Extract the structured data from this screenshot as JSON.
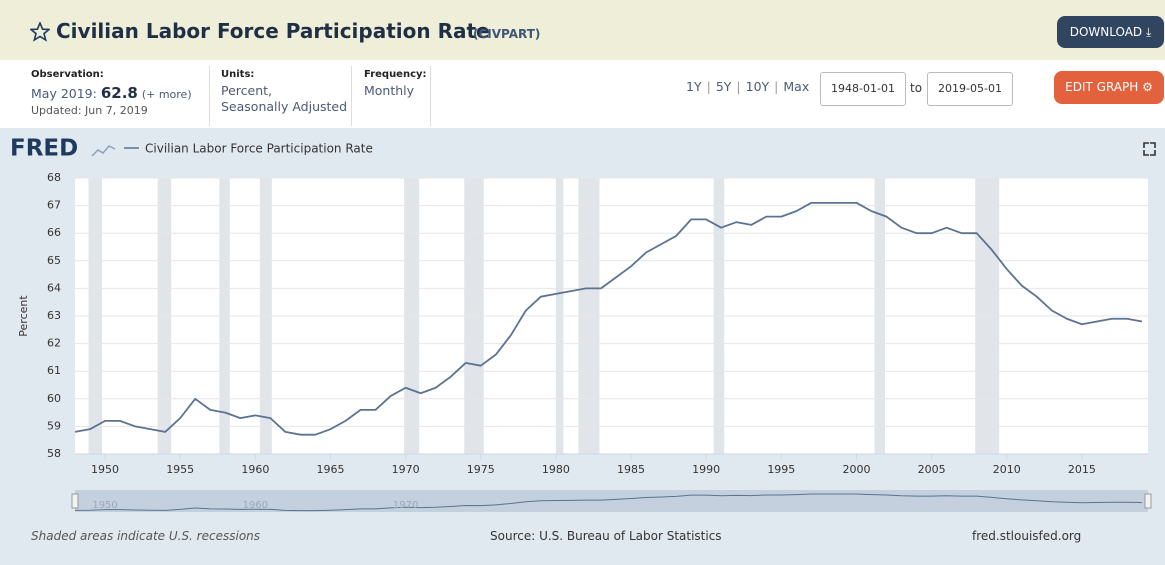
{
  "header": {
    "title": "Civilian Labor Force Participation Rate",
    "code": "(CIVPART)",
    "download": "DOWNLOAD"
  },
  "observation": {
    "label": "Observation:",
    "date": "May 2019:",
    "value": "62.8",
    "more": "(+ more)",
    "updated": "Updated: Jun 7, 2019"
  },
  "units": {
    "label": "Units:",
    "lines": [
      "Percent,",
      "Seasonally Adjusted"
    ]
  },
  "frequency": {
    "label": "Frequency:",
    "value": "Monthly"
  },
  "range": {
    "buttons": [
      "1Y",
      "5Y",
      "10Y",
      "Max"
    ],
    "start": "1948-01-01",
    "to": "to",
    "end": "2019-05-01",
    "edit": "EDIT GRAPH"
  },
  "footer": {
    "note": "Shaded areas indicate U.S. recessions",
    "source": "Source: U.S. Bureau of Labor Statistics",
    "site": "fred.stlouisfed.org"
  },
  "chart_data": {
    "type": "line",
    "brand": "FRED",
    "ylabel": "Percent",
    "x": [
      1948,
      1949,
      1950,
      1951,
      1952,
      1953,
      1954,
      1955,
      1956,
      1957,
      1958,
      1959,
      1960,
      1961,
      1962,
      1963,
      1964,
      1965,
      1966,
      1967,
      1968,
      1969,
      1970,
      1971,
      1972,
      1973,
      1974,
      1975,
      1976,
      1977,
      1978,
      1979,
      1980,
      1981,
      1982,
      1983,
      1984,
      1985,
      1986,
      1987,
      1988,
      1989,
      1990,
      1991,
      1992,
      1993,
      1994,
      1995,
      1996,
      1997,
      1998,
      1999,
      2000,
      2001,
      2002,
      2003,
      2004,
      2005,
      2006,
      2007,
      2008,
      2009,
      2010,
      2011,
      2012,
      2013,
      2014,
      2015,
      2016,
      2017,
      2018,
      2019
    ],
    "series": [
      {
        "name": "Civilian Labor Force Participation Rate",
        "color": "#5b7393",
        "values": [
          58.8,
          58.9,
          59.2,
          59.2,
          59.0,
          58.9,
          58.8,
          59.3,
          60.0,
          59.6,
          59.5,
          59.3,
          59.4,
          59.3,
          58.8,
          58.7,
          58.7,
          58.9,
          59.2,
          59.6,
          59.6,
          60.1,
          60.4,
          60.2,
          60.4,
          60.8,
          61.3,
          61.2,
          61.6,
          62.3,
          63.2,
          63.7,
          63.8,
          63.9,
          64.0,
          64.0,
          64.4,
          64.8,
          65.3,
          65.6,
          65.9,
          66.5,
          66.5,
          66.2,
          66.4,
          66.3,
          66.6,
          66.6,
          66.8,
          67.1,
          67.1,
          67.1,
          67.1,
          66.8,
          66.6,
          66.2,
          66.0,
          66.0,
          66.2,
          66.0,
          66.0,
          65.4,
          64.7,
          64.1,
          63.7,
          63.2,
          62.9,
          62.7,
          62.8,
          62.9,
          62.9,
          62.8
        ]
      }
    ],
    "recessions": [
      [
        1948.9,
        1949.8
      ],
      [
        1953.5,
        1954.4
      ],
      [
        1957.6,
        1958.3
      ],
      [
        1960.3,
        1961.1
      ],
      [
        1969.9,
        1970.9
      ],
      [
        1973.9,
        1975.2
      ],
      [
        1980.0,
        1980.5
      ],
      [
        1981.5,
        1982.9
      ],
      [
        1990.5,
        1991.2
      ],
      [
        2001.2,
        2001.9
      ],
      [
        2007.9,
        2009.5
      ]
    ],
    "recession_color": "#e1e5ea",
    "xlim": [
      1948,
      2019.4
    ],
    "xticks": [
      1950,
      1955,
      1960,
      1965,
      1970,
      1975,
      1980,
      1985,
      1990,
      1995,
      2000,
      2005,
      2010,
      2015
    ],
    "ylim": [
      58,
      68
    ],
    "yticks": [
      58,
      59,
      60,
      61,
      62,
      63,
      64,
      65,
      66,
      67,
      68
    ],
    "grid": true,
    "navigator": {
      "xticks": [
        1950,
        1960,
        1970
      ]
    }
  }
}
